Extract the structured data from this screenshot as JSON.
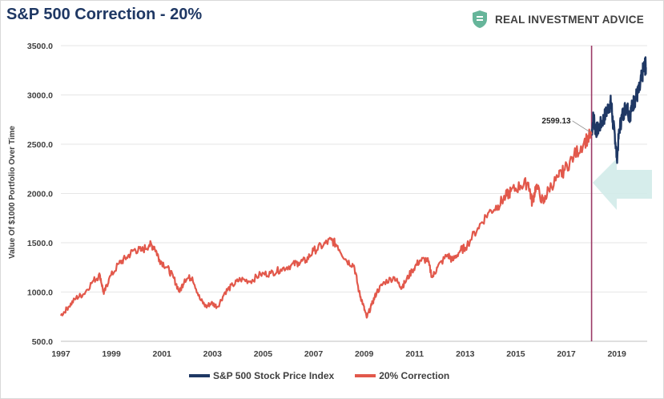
{
  "title": "S&P 500 Correction - 20%",
  "brand": {
    "name": "REAL INVESTMENT ADVICE",
    "icon": "shield-icon",
    "color": "#66b59a"
  },
  "colors": {
    "series_blue": "#1f3864",
    "series_red": "#e2584b",
    "marker_line": "#9b3a66",
    "arrow": "#cfeae8",
    "grid": "#e6e6e6"
  },
  "chart_data": {
    "type": "line",
    "title": "S&P 500 Correction - 20%",
    "xlabel": "",
    "ylabel": "Value Of $1000 Portfolio Over Time",
    "xlim": [
      1997.0,
      2020.2
    ],
    "ylim": [
      500,
      3500
    ],
    "x_ticks": [
      "1997",
      "1999",
      "2001",
      "2003",
      "2005",
      "2007",
      "2009",
      "2011",
      "2013",
      "2015",
      "2017",
      "2019"
    ],
    "y_ticks": [
      "3500.0",
      "3000.0",
      "2500.0",
      "2000.0",
      "1500.0",
      "1000.0",
      "500.0"
    ],
    "grid": true,
    "legend_position": "bottom",
    "marker_x": 2018.0,
    "annotation": {
      "label": "2599.13",
      "x": 2018.0,
      "y": 2599.13
    },
    "series": [
      {
        "name": "S&P 500 Stock Price Index",
        "x": [
          2018.0,
          2018.08,
          2018.15,
          2018.25,
          2018.4,
          2018.55,
          2018.7,
          2018.78,
          2018.85,
          2018.92,
          2019.0,
          2019.1,
          2019.2,
          2019.3,
          2019.4,
          2019.5,
          2019.6,
          2019.7,
          2019.8,
          2019.9,
          2020.0,
          2020.1,
          2020.15
        ],
        "values": [
          2599,
          2800,
          2640,
          2650,
          2720,
          2800,
          2900,
          2920,
          2700,
          2600,
          2350,
          2650,
          2780,
          2850,
          2900,
          2780,
          2880,
          2950,
          3000,
          3050,
          3200,
          3300,
          3280
        ]
      },
      {
        "name": "20% Correction",
        "x": [
          1997.0,
          1997.3,
          1997.6,
          1997.9,
          1998.3,
          1998.55,
          1998.7,
          1998.9,
          1999.3,
          1999.6,
          1999.9,
          2000.2,
          2000.5,
          2000.7,
          2000.9,
          2001.2,
          2001.45,
          2001.7,
          2001.9,
          2002.2,
          2002.5,
          2002.75,
          2002.95,
          2003.2,
          2003.5,
          2003.8,
          2004.1,
          2004.5,
          2004.9,
          2005.3,
          2005.7,
          2006.1,
          2006.4,
          2006.7,
          2007.0,
          2007.4,
          2007.7,
          2007.95,
          2008.3,
          2008.6,
          2008.8,
          2008.95,
          2009.1,
          2009.3,
          2009.5,
          2009.8,
          2010.2,
          2010.45,
          2010.6,
          2010.9,
          2011.2,
          2011.5,
          2011.7,
          2011.9,
          2012.3,
          2012.5,
          2012.8,
          2013.0,
          2013.5,
          2013.9,
          2014.3,
          2014.6,
          2014.8,
          2015.2,
          2015.5,
          2015.65,
          2015.8,
          2016.1,
          2016.3,
          2016.7,
          2016.9,
          2017.3,
          2017.7,
          2018.0
        ],
        "values": [
          760,
          850,
          940,
          980,
          1120,
          1170,
          980,
          1130,
          1290,
          1350,
          1430,
          1420,
          1480,
          1460,
          1330,
          1250,
          1150,
          1000,
          1130,
          1150,
          930,
          850,
          890,
          850,
          1000,
          1070,
          1130,
          1110,
          1180,
          1190,
          1230,
          1270,
          1300,
          1320,
          1420,
          1480,
          1530,
          1470,
          1320,
          1270,
          1000,
          880,
          740,
          870,
          1000,
          1100,
          1150,
          1050,
          1090,
          1220,
          1320,
          1330,
          1150,
          1250,
          1380,
          1320,
          1420,
          1450,
          1650,
          1800,
          1880,
          1970,
          2020,
          2080,
          2110,
          1900,
          2080,
          1900,
          2050,
          2170,
          2230,
          2380,
          2520,
          2599
        ]
      }
    ]
  },
  "legend": [
    {
      "label": "S&P 500 Stock Price Index"
    },
    {
      "label": "20% Correction"
    }
  ]
}
